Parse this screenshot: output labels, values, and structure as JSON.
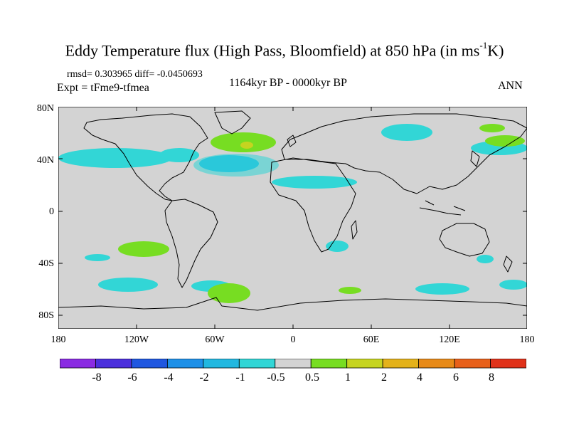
{
  "title": {
    "main": "Eddy Temperature flux (High Pass, Bloomfield) at 850 hPa (in ms",
    "sup": "-1",
    "end": "K)"
  },
  "stats": "rmsd= 0.303965 diff= -0.0450693",
  "expt": "Expt = tFme9-tfmea",
  "period": "1164kyr BP - 0000kyr BP",
  "season": "ANN",
  "lat_labels": [
    "80N",
    "40N",
    "0",
    "40S",
    "80S"
  ],
  "lon_labels": [
    "180",
    "120W",
    "60W",
    "0",
    "60E",
    "120E",
    "180"
  ],
  "colorbar": {
    "labels": [
      "-8",
      "-6",
      "-4",
      "-2",
      "-1",
      "-0.5",
      "0.5",
      "1",
      "2",
      "4",
      "6",
      "8"
    ],
    "colors": [
      "#8a2be2",
      "#4b2fdc",
      "#1f57e0",
      "#1e90e8",
      "#22b8e0",
      "#32d6d6",
      "#d3d3d3",
      "#77dd22",
      "#c6d420",
      "#e4b21a",
      "#e88a18",
      "#e8601a",
      "#e0321a"
    ]
  },
  "colors": {
    "background": "#d3d3d3",
    "cyan": "#32d6d6",
    "blue": "#22b8e0",
    "green": "#77dd22",
    "yellow": "#c6d420",
    "coast": "#000000"
  }
}
